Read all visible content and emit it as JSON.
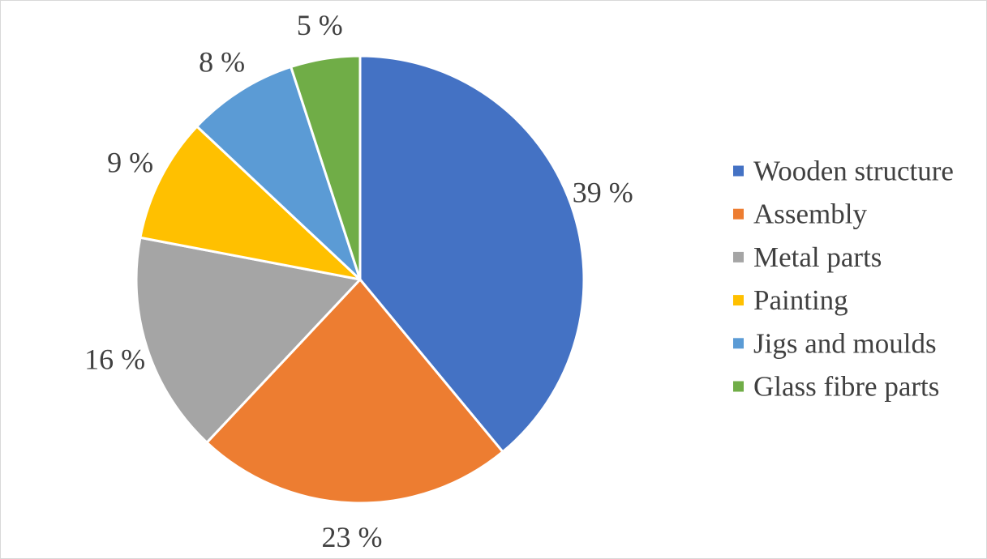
{
  "chart_data": {
    "type": "pie",
    "start_angle_deg": 0,
    "direction": "clockwise",
    "legend_position": "right",
    "slices": [
      {
        "label": "Wooden structure",
        "value": 39,
        "value_label": "39 %",
        "color": "#4472C4"
      },
      {
        "label": "Assembly",
        "value": 23,
        "value_label": "23 %",
        "color": "#ED7D31"
      },
      {
        "label": "Metal parts",
        "value": 16,
        "value_label": "16 %",
        "color": "#A5A5A5"
      },
      {
        "label": "Painting",
        "value": 9,
        "value_label": "9 %",
        "color": "#FFC000"
      },
      {
        "label": "Jigs and moulds",
        "value": 8,
        "value_label": "8 %",
        "color": "#5B9BD5"
      },
      {
        "label": "Glass fibre parts",
        "value": 5,
        "value_label": "5 %",
        "color": "#70AD47"
      }
    ]
  }
}
